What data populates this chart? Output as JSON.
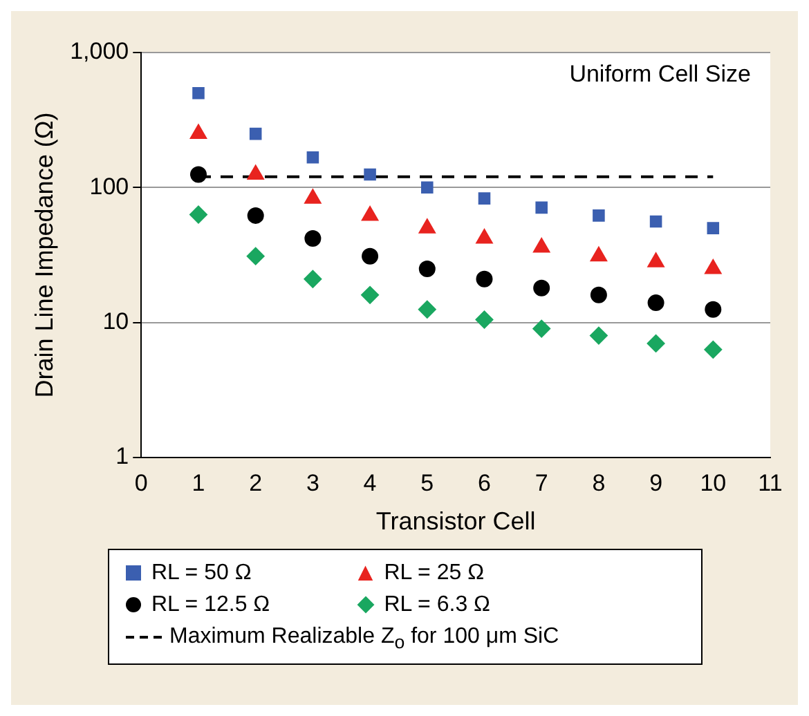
{
  "chart_data": {
    "type": "scatter",
    "xlabel": "Transistor Cell",
    "ylabel": "Drain Line Impedance (Ω)",
    "annotations": [
      "Uniform Cell Size"
    ],
    "x": [
      1,
      2,
      3,
      4,
      5,
      6,
      7,
      8,
      9,
      10
    ],
    "xlim": [
      0,
      11
    ],
    "xticks": [
      0,
      1,
      2,
      3,
      4,
      5,
      6,
      7,
      8,
      9,
      10,
      11
    ],
    "ylim": [
      1,
      1000
    ],
    "yticks": [
      1,
      10,
      100,
      {
        "value": 1000,
        "label": "1,000"
      }
    ],
    "log": "y",
    "grid": "y",
    "legend": "bottom",
    "series": [
      {
        "name": "RL = 50 Ω",
        "color": "#3b5fb0",
        "marker": "square",
        "values": [
          500,
          250,
          167,
          125,
          100,
          83,
          71,
          62,
          56,
          50
        ]
      },
      {
        "name": "RL = 25 Ω",
        "color": "#e8231f",
        "marker": "triangle",
        "values": [
          250,
          125,
          83,
          62,
          50,
          42,
          36,
          31,
          28,
          25
        ]
      },
      {
        "name": "RL = 12.5 Ω",
        "color": "#000000",
        "marker": "circle",
        "values": [
          125,
          62,
          42,
          31,
          25,
          21,
          18,
          16,
          14,
          12.5
        ]
      },
      {
        "name": "RL = 6.3 Ω",
        "color": "#1aa760",
        "marker": "diamond",
        "values": [
          63,
          31,
          21,
          16,
          12.5,
          10.5,
          9,
          8,
          7,
          6.3
        ]
      },
      {
        "name": "Maximum Realizable Z$_{o}$ for 100 μm SiC",
        "type": "line",
        "color": "#000000",
        "marker": "none",
        "line_style": "dashed",
        "x": [
          1,
          10
        ],
        "values": [
          120,
          120
        ]
      }
    ]
  }
}
